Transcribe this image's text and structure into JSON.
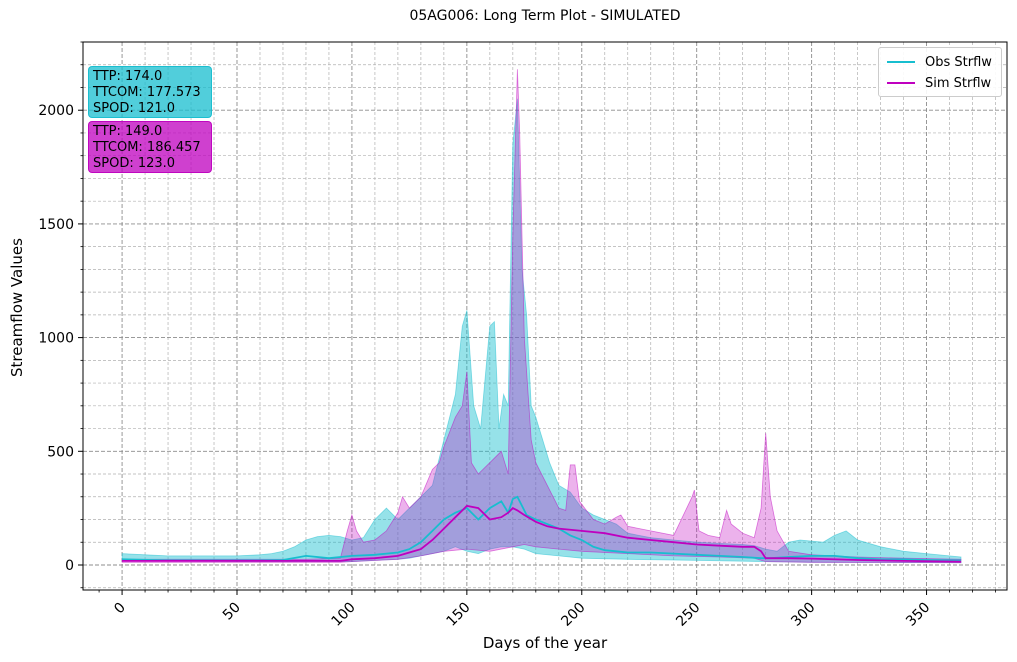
{
  "chart_data": {
    "type": "area",
    "title": "05AG006: Long Term Plot - SIMULATED",
    "xlabel": "Days of the year",
    "ylabel": "Streamflow Values",
    "xlim": [
      -17,
      385
    ],
    "ylim": [
      -110,
      2300
    ],
    "xticks": [
      "0",
      "50",
      "100",
      "150",
      "200",
      "250",
      "300",
      "350"
    ],
    "yticks": [
      "0",
      "500",
      "1000",
      "1500",
      "2000"
    ],
    "grid": true,
    "legend_position": "top-right",
    "series": [
      {
        "name": "Obs Strflw",
        "color": "#17becf",
        "mean": [
          [
            0,
            25
          ],
          [
            20,
            20
          ],
          [
            40,
            20
          ],
          [
            60,
            20
          ],
          [
            70,
            22
          ],
          [
            80,
            40
          ],
          [
            90,
            30
          ],
          [
            100,
            40
          ],
          [
            110,
            45
          ],
          [
            120,
            55
          ],
          [
            125,
            70
          ],
          [
            130,
            100
          ],
          [
            135,
            150
          ],
          [
            140,
            200
          ],
          [
            145,
            230
          ],
          [
            150,
            250
          ],
          [
            155,
            200
          ],
          [
            160,
            250
          ],
          [
            165,
            280
          ],
          [
            168,
            230
          ],
          [
            170,
            290
          ],
          [
            172,
            300
          ],
          [
            174,
            260
          ],
          [
            176,
            220
          ],
          [
            180,
            200
          ],
          [
            185,
            180
          ],
          [
            190,
            160
          ],
          [
            195,
            130
          ],
          [
            200,
            110
          ],
          [
            205,
            80
          ],
          [
            210,
            65
          ],
          [
            215,
            60
          ],
          [
            220,
            55
          ],
          [
            230,
            55
          ],
          [
            240,
            50
          ],
          [
            250,
            45
          ],
          [
            260,
            40
          ],
          [
            270,
            35
          ],
          [
            278,
            30
          ],
          [
            282,
            30
          ],
          [
            290,
            35
          ],
          [
            300,
            40
          ],
          [
            310,
            40
          ],
          [
            320,
            30
          ],
          [
            330,
            25
          ],
          [
            340,
            25
          ],
          [
            350,
            22
          ],
          [
            365,
            20
          ]
        ],
        "band_upper": [
          [
            0,
            50
          ],
          [
            10,
            45
          ],
          [
            20,
            40
          ],
          [
            30,
            40
          ],
          [
            40,
            40
          ],
          [
            50,
            40
          ],
          [
            60,
            45
          ],
          [
            65,
            50
          ],
          [
            70,
            60
          ],
          [
            75,
            80
          ],
          [
            80,
            110
          ],
          [
            85,
            125
          ],
          [
            90,
            130
          ],
          [
            95,
            125
          ],
          [
            100,
            110
          ],
          [
            105,
            120
          ],
          [
            110,
            200
          ],
          [
            115,
            250
          ],
          [
            120,
            200
          ],
          [
            125,
            250
          ],
          [
            130,
            300
          ],
          [
            135,
            350
          ],
          [
            140,
            550
          ],
          [
            145,
            750
          ],
          [
            148,
            1050
          ],
          [
            150,
            1120
          ],
          [
            153,
            700
          ],
          [
            156,
            600
          ],
          [
            160,
            1050
          ],
          [
            162,
            1070
          ],
          [
            164,
            600
          ],
          [
            166,
            750
          ],
          [
            168,
            700
          ],
          [
            170,
            1850
          ],
          [
            172,
            2050
          ],
          [
            174,
            1300
          ],
          [
            176,
            1100
          ],
          [
            178,
            700
          ],
          [
            180,
            650
          ],
          [
            183,
            550
          ],
          [
            186,
            450
          ],
          [
            190,
            350
          ],
          [
            195,
            320
          ],
          [
            200,
            250
          ],
          [
            205,
            220
          ],
          [
            210,
            200
          ],
          [
            215,
            180
          ],
          [
            220,
            140
          ],
          [
            230,
            120
          ],
          [
            240,
            110
          ],
          [
            250,
            100
          ],
          [
            260,
            95
          ],
          [
            270,
            90
          ],
          [
            275,
            85
          ],
          [
            280,
            70
          ],
          [
            285,
            60
          ],
          [
            290,
            100
          ],
          [
            295,
            110
          ],
          [
            300,
            105
          ],
          [
            305,
            100
          ],
          [
            310,
            130
          ],
          [
            315,
            150
          ],
          [
            320,
            110
          ],
          [
            330,
            80
          ],
          [
            340,
            60
          ],
          [
            350,
            50
          ],
          [
            360,
            40
          ],
          [
            365,
            35
          ]
        ],
        "band_lower": [
          [
            0,
            20
          ],
          [
            50,
            15
          ],
          [
            80,
            15
          ],
          [
            100,
            15
          ],
          [
            110,
            20
          ],
          [
            120,
            25
          ],
          [
            125,
            30
          ],
          [
            130,
            40
          ],
          [
            135,
            50
          ],
          [
            140,
            60
          ],
          [
            145,
            80
          ],
          [
            150,
            60
          ],
          [
            155,
            50
          ],
          [
            160,
            70
          ],
          [
            165,
            80
          ],
          [
            170,
            80
          ],
          [
            175,
            70
          ],
          [
            180,
            50
          ],
          [
            190,
            40
          ],
          [
            200,
            30
          ],
          [
            220,
            25
          ],
          [
            250,
            20
          ],
          [
            280,
            15
          ],
          [
            300,
            12
          ],
          [
            365,
            10
          ]
        ]
      },
      {
        "name": "Sim Strflw",
        "color": "#bf00bf",
        "mean": [
          [
            0,
            18
          ],
          [
            50,
            18
          ],
          [
            80,
            18
          ],
          [
            95,
            18
          ],
          [
            100,
            25
          ],
          [
            110,
            30
          ],
          [
            120,
            40
          ],
          [
            125,
            55
          ],
          [
            130,
            70
          ],
          [
            135,
            110
          ],
          [
            140,
            160
          ],
          [
            145,
            210
          ],
          [
            150,
            260
          ],
          [
            155,
            250
          ],
          [
            160,
            200
          ],
          [
            165,
            210
          ],
          [
            168,
            230
          ],
          [
            170,
            250
          ],
          [
            172,
            240
          ],
          [
            175,
            220
          ],
          [
            180,
            190
          ],
          [
            185,
            170
          ],
          [
            190,
            160
          ],
          [
            200,
            150
          ],
          [
            210,
            140
          ],
          [
            220,
            120
          ],
          [
            230,
            110
          ],
          [
            240,
            100
          ],
          [
            250,
            90
          ],
          [
            260,
            85
          ],
          [
            270,
            80
          ],
          [
            275,
            80
          ],
          [
            278,
            60
          ],
          [
            280,
            30
          ],
          [
            290,
            30
          ],
          [
            300,
            28
          ],
          [
            320,
            22
          ],
          [
            340,
            18
          ],
          [
            365,
            15
          ]
        ],
        "band_upper": [
          [
            0,
            25
          ],
          [
            50,
            25
          ],
          [
            80,
            25
          ],
          [
            95,
            30
          ],
          [
            98,
            150
          ],
          [
            100,
            220
          ],
          [
            102,
            150
          ],
          [
            105,
            100
          ],
          [
            110,
            110
          ],
          [
            115,
            150
          ],
          [
            120,
            230
          ],
          [
            122,
            300
          ],
          [
            125,
            250
          ],
          [
            130,
            300
          ],
          [
            135,
            420
          ],
          [
            138,
            450
          ],
          [
            140,
            520
          ],
          [
            145,
            650
          ],
          [
            148,
            700
          ],
          [
            150,
            850
          ],
          [
            152,
            450
          ],
          [
            155,
            400
          ],
          [
            160,
            450
          ],
          [
            165,
            500
          ],
          [
            168,
            400
          ],
          [
            170,
            1450
          ],
          [
            172,
            2180
          ],
          [
            173,
            1900
          ],
          [
            175,
            1000
          ],
          [
            178,
            550
          ],
          [
            180,
            450
          ],
          [
            185,
            350
          ],
          [
            190,
            250
          ],
          [
            193,
            240
          ],
          [
            195,
            440
          ],
          [
            197,
            440
          ],
          [
            199,
            280
          ],
          [
            205,
            200
          ],
          [
            210,
            180
          ],
          [
            215,
            210
          ],
          [
            217,
            220
          ],
          [
            220,
            170
          ],
          [
            230,
            150
          ],
          [
            240,
            130
          ],
          [
            248,
            300
          ],
          [
            249,
            330
          ],
          [
            251,
            150
          ],
          [
            255,
            130
          ],
          [
            260,
            120
          ],
          [
            263,
            240
          ],
          [
            265,
            180
          ],
          [
            270,
            140
          ],
          [
            275,
            120
          ],
          [
            278,
            250
          ],
          [
            280,
            580
          ],
          [
            282,
            300
          ],
          [
            285,
            150
          ],
          [
            290,
            60
          ],
          [
            300,
            45
          ],
          [
            320,
            35
          ],
          [
            340,
            30
          ],
          [
            365,
            25
          ]
        ],
        "band_lower": [
          [
            0,
            12
          ],
          [
            50,
            12
          ],
          [
            95,
            12
          ],
          [
            100,
            15
          ],
          [
            120,
            25
          ],
          [
            130,
            40
          ],
          [
            140,
            60
          ],
          [
            150,
            70
          ],
          [
            160,
            60
          ],
          [
            170,
            80
          ],
          [
            175,
            90
          ],
          [
            180,
            80
          ],
          [
            190,
            70
          ],
          [
            200,
            60
          ],
          [
            220,
            50
          ],
          [
            240,
            40
          ],
          [
            260,
            35
          ],
          [
            275,
            30
          ],
          [
            280,
            15
          ],
          [
            300,
            12
          ],
          [
            365,
            10
          ]
        ]
      }
    ],
    "stat_boxes": [
      {
        "lines": [
          "TTP: 174.0",
          "TTCOM: 177.573",
          "SPOD: 121.0"
        ],
        "color": "#17becf"
      },
      {
        "lines": [
          "TTP: 149.0",
          "TTCOM: 186.457",
          "SPOD: 123.0"
        ],
        "color": "#bf00bf"
      }
    ]
  }
}
